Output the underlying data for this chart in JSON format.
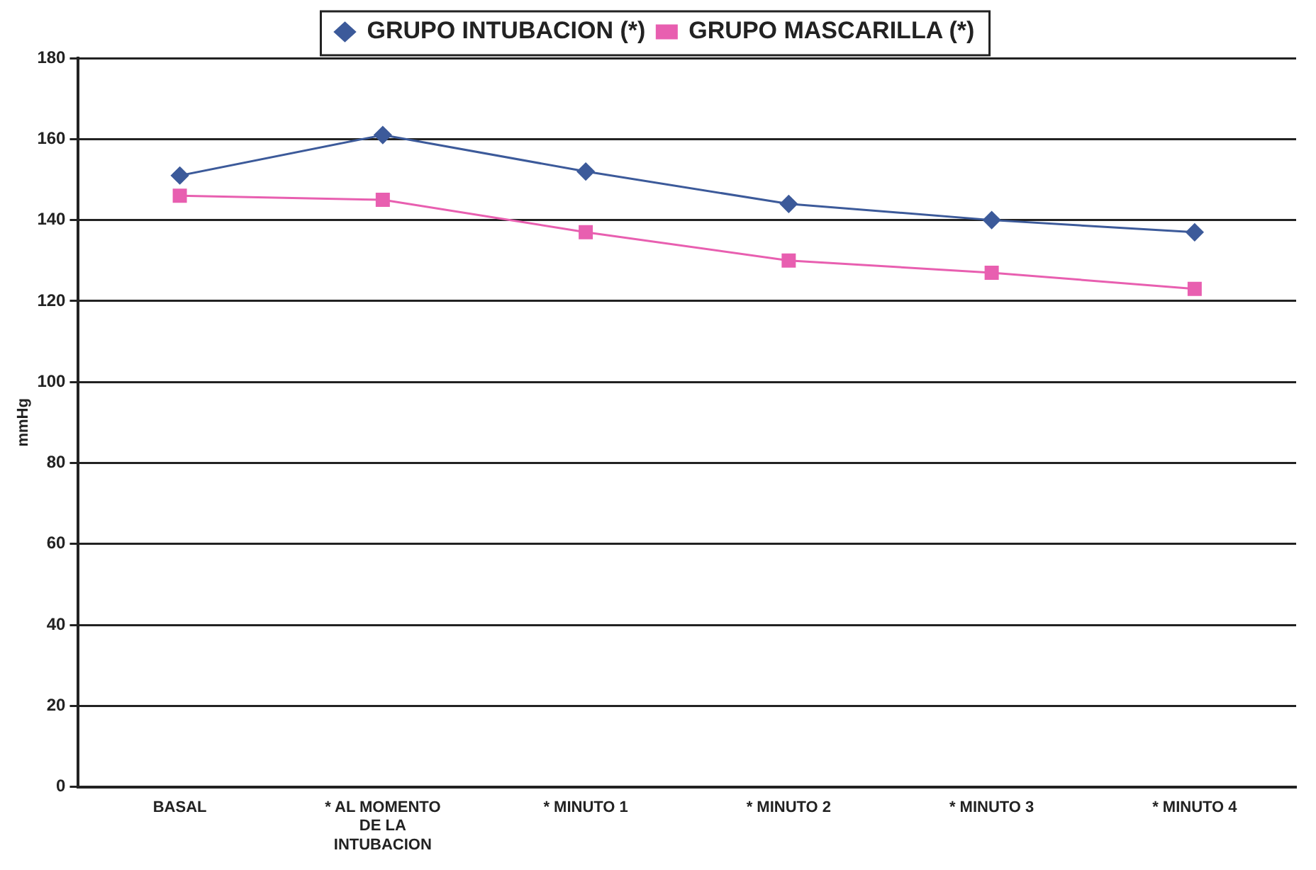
{
  "chart_data": {
    "type": "line",
    "ylabel": "mmHg",
    "categories": [
      "BASAL",
      "* AL MOMENTO DE LA INTUBACION",
      "* MINUTO 1",
      "* MINUTO 2",
      "* MINUTO 3",
      "* MINUTO 4"
    ],
    "series": [
      {
        "name": "GRUPO INTUBACION (*)",
        "color": "#3c5a9a",
        "marker": "diamond",
        "values": [
          151,
          161,
          152,
          144,
          140,
          137
        ]
      },
      {
        "name": "GRUPO MASCARILLA (*)",
        "color": "#e85fb0",
        "marker": "square",
        "values": [
          146,
          145,
          137,
          130,
          127,
          123
        ]
      }
    ],
    "ylim": [
      0,
      180
    ],
    "yticks": [
      0,
      20,
      40,
      60,
      80,
      100,
      120,
      140,
      160,
      180
    ],
    "grid": "y",
    "legend": "top",
    "line_style": "solid"
  }
}
